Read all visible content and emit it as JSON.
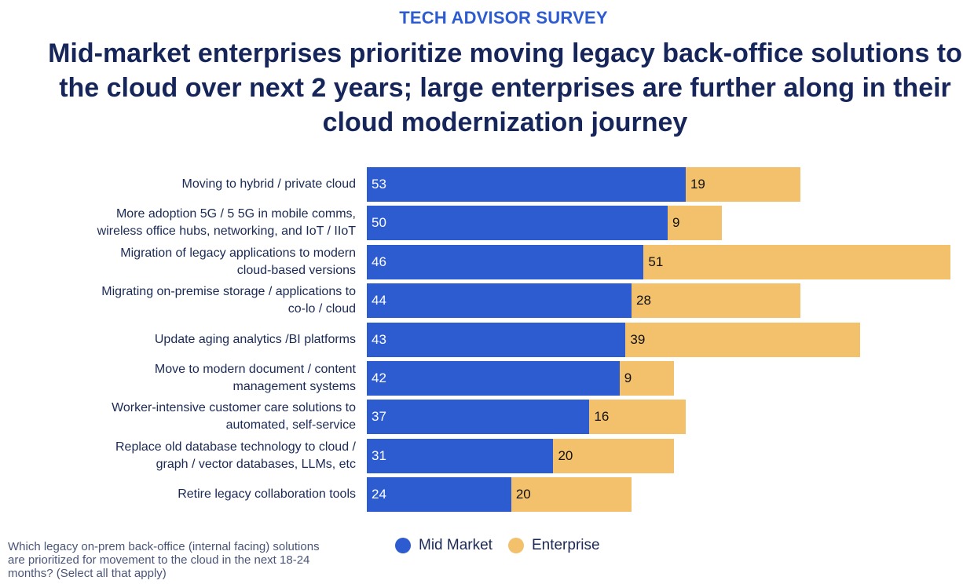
{
  "header": {
    "kicker": "TECH ADVISOR SURVEY",
    "title": "Mid-market enterprises prioritize moving legacy back-office solutions to the cloud over next 2 years; large enterprises are further along in their cloud modernization journey"
  },
  "colors": {
    "mid_market": "#2d5bd0",
    "enterprise": "#f3c16b"
  },
  "legend": {
    "items": [
      "Mid Market",
      "Enterprise"
    ]
  },
  "footnote": "Which legacy on-prem back-office (internal facing) solutions are prioritized for movement to the cloud in the next 18-24 months? (Select all that apply)",
  "chart_data": {
    "type": "bar",
    "orientation": "horizontal",
    "stacked": true,
    "title": "Mid-market enterprises prioritize moving legacy back-office solutions to the cloud over next 2 years; large enterprises are further along in their cloud modernization journey",
    "xlabel": "",
    "ylabel": "",
    "grid": false,
    "legend_position": "bottom",
    "categories": [
      [
        "Moving to hybrid / private cloud"
      ],
      [
        "More adoption 5G / 5 5G in mobile comms,",
        "wireless office hubs, networking, and IoT / IIoT"
      ],
      [
        "Migration of legacy applications to modern",
        "cloud-based versions"
      ],
      [
        "Migrating on-premise storage / applications to",
        "co-lo / cloud"
      ],
      [
        "Update aging analytics /BI platforms"
      ],
      [
        "Move to modern document / content",
        "management systems"
      ],
      [
        "Worker-intensive customer care solutions to",
        "automated, self-service"
      ],
      [
        "Replace old database technology to cloud /",
        "graph / vector databases, LLMs, etc"
      ],
      [
        "Retire legacy collaboration tools"
      ]
    ],
    "series": [
      {
        "name": "Mid Market",
        "values": [
          53,
          50,
          46,
          44,
          43,
          42,
          37,
          31,
          24
        ]
      },
      {
        "name": "Enterprise",
        "values": [
          19,
          9,
          51,
          28,
          39,
          9,
          16,
          20,
          20
        ]
      }
    ]
  }
}
